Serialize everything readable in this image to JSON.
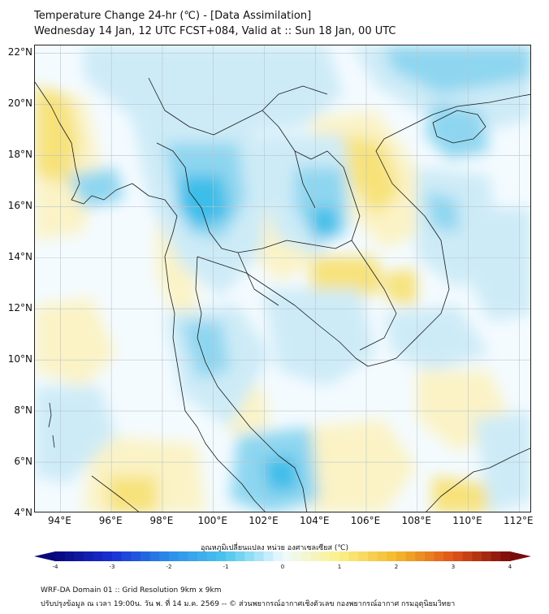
{
  "header": {
    "title": "Temperature Change 24-hr (℃) - [Data Assimilation]",
    "subtitle": "Wednesday 14 Jan, 12 UTC FCST+084, Valid at :: Sun 18 Jan, 00 UTC"
  },
  "map": {
    "lat_labels": [
      "22°N",
      "20°N",
      "18°N",
      "16°N",
      "14°N",
      "12°N",
      "10°N",
      "8°N",
      "6°N",
      "4°N"
    ],
    "lon_labels": [
      "94°E",
      "96°E",
      "98°E",
      "100°E",
      "102°E",
      "104°E",
      "106°E",
      "108°E",
      "110°E",
      "112°E"
    ],
    "lat_range": [
      4,
      22.3
    ],
    "lon_range": [
      93,
      112.5
    ],
    "field_colors": {
      "warm_light": "#fbf3c6",
      "warm": "#f7e27a",
      "cool_light": "#cdebf7",
      "cool": "#8ed6f0",
      "cool_strong": "#3cbde9",
      "neutral": "#f4fbff",
      "coastline": "#1a1a1a"
    }
  },
  "colorbar": {
    "title": "อุณหภูมิเปลี่ยนแปลง หน่วย องศาเซลเซียส (℃)",
    "min": -4,
    "max": 4,
    "tick_labels": [
      "-4",
      "-3",
      "-2",
      "-1",
      "0",
      "1",
      "2",
      "3",
      "4"
    ],
    "colors": [
      "#08087a",
      "#1a2fd6",
      "#2b8de8",
      "#4cc6ee",
      "#eefaff",
      "#fbf08a",
      "#f3b82a",
      "#e0531a",
      "#7a0a0a"
    ]
  },
  "footer": {
    "line1": "WRF-DA Domain 01 :: Grid Resolution 9km x 9km",
    "line2": "ปรับปรุงข้อมูล ณ เวลา 19:00น. วัน พ. ที่ 14 ม.ค. 2569 -- © ส่วนพยากรณ์อากาศเชิงตัวเลข กองพยากรณ์อากาศ กรมอุตุนิยมวิทยา"
  }
}
